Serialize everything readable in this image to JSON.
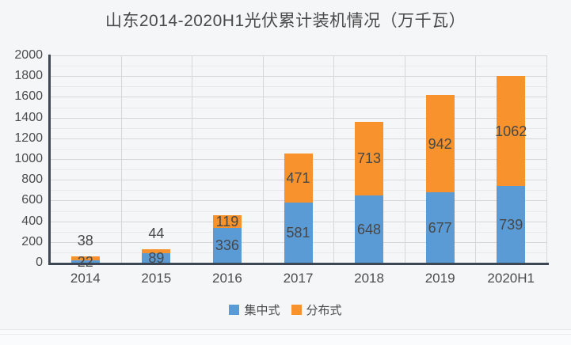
{
  "chart_data": {
    "type": "bar",
    "stacked": true,
    "title": "山东2014-2020H1光伏累计装机情况（万千瓦）",
    "categories": [
      "2014",
      "2015",
      "2016",
      "2017",
      "2018",
      "2019",
      "2020H1"
    ],
    "series": [
      {
        "name": "集中式",
        "color": "#5B9BD5",
        "values": [
          22,
          89,
          336,
          581,
          648,
          677,
          739
        ]
      },
      {
        "name": "分布式",
        "color": "#F8922C",
        "values": [
          38,
          44,
          119,
          471,
          713,
          942,
          1062
        ]
      }
    ],
    "ylim": [
      0,
      2000
    ],
    "ytick_interval": 200,
    "yticks": [
      "0",
      "200",
      "400",
      "600",
      "800",
      "1000",
      "1200",
      "1400",
      "1600",
      "1800",
      "2000"
    ],
    "grid": true,
    "legend_position": "bottom"
  },
  "colors": {
    "background": "#f5f6f8",
    "axis": "#3d4653",
    "grid_major": "#d7d7da",
    "grid_minor": "#e9e9ec",
    "series_blue": "#5B9BD5",
    "series_orange": "#F8922C",
    "text": "#4a4a4a"
  }
}
